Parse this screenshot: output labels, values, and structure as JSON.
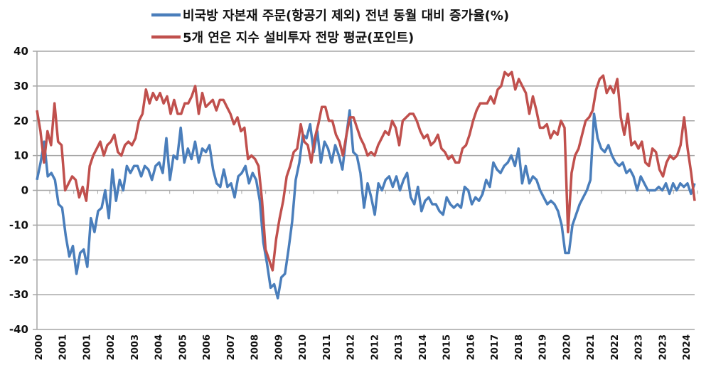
{
  "chart_data": {
    "type": "line",
    "title": "",
    "xlabel": "",
    "ylabel": "",
    "ylim": [
      -40,
      40
    ],
    "yticks": [
      40,
      30,
      20,
      10,
      0,
      -10,
      -20,
      -30,
      -40
    ],
    "x_range": [
      "2000-01",
      "2024-06"
    ],
    "x_tick_labels": [
      "2000",
      "2001",
      "2001",
      "2002",
      "2003",
      "2004",
      "2005",
      "2006",
      "2007",
      "2008",
      "2009",
      "2010",
      "2011",
      "2012",
      "2012",
      "2013",
      "2014",
      "2015",
      "2016",
      "2017",
      "2018",
      "2019",
      "2020",
      "2021",
      "2022",
      "2023",
      "2023",
      "2024"
    ],
    "grid": true,
    "legend_position": "top",
    "series": [
      {
        "name": "비국방 자본재 주문(항공기 제외) 전년 동월 대비 증가율(%)",
        "color": "#4a7ebb",
        "values": [
          3,
          8,
          14,
          4,
          5,
          3,
          -4,
          -5,
          -13,
          -19,
          -16,
          -24,
          -18,
          -17,
          -22,
          -8,
          -12,
          -6,
          -5,
          0,
          -8,
          6,
          -3,
          3,
          0,
          7,
          5,
          7,
          7,
          4,
          7,
          6,
          3,
          7,
          8,
          5,
          15,
          3,
          10,
          9,
          18,
          8,
          12,
          9,
          14,
          8,
          12,
          11,
          13,
          6,
          2,
          1,
          6,
          1,
          2,
          -2,
          4,
          5,
          7,
          2,
          5,
          3,
          -3,
          -15,
          -21,
          -28,
          -27,
          -31,
          -25,
          -24,
          -17,
          -9,
          3,
          8,
          16,
          15,
          19,
          11,
          17,
          8,
          14,
          12,
          8,
          13,
          10,
          6,
          15,
          23,
          11,
          10,
          5,
          -5,
          2,
          -2,
          -7,
          2,
          0,
          3,
          4,
          1,
          4,
          0,
          3,
          5,
          -2,
          -4,
          1,
          -6,
          -3,
          -2,
          -4,
          -4,
          -6,
          -7,
          -2,
          -4,
          -5,
          -4,
          -5,
          1,
          0,
          -4,
          -2,
          -3,
          -1,
          3,
          1,
          8,
          6,
          5,
          7,
          8,
          10,
          7,
          12,
          2,
          7,
          2,
          4,
          3,
          0,
          -2,
          -4,
          -3,
          -4,
          -6,
          -10,
          -18,
          -18,
          -10,
          -7,
          -4,
          -2,
          0,
          3,
          22,
          15,
          12,
          11,
          13,
          10,
          8,
          7,
          8,
          5,
          6,
          4,
          0,
          4,
          2,
          0,
          0,
          0,
          1,
          0,
          2,
          -1,
          2,
          0,
          2,
          1,
          2,
          -1,
          2
        ]
      },
      {
        "name": "5개 연은 지수 설비투자 전망 평균(포인트)",
        "color": "#c0504d",
        "values": [
          23,
          17,
          8,
          17,
          13,
          25,
          14,
          13,
          0,
          2,
          4,
          3,
          -2,
          1,
          -3,
          7,
          10,
          12,
          14,
          10,
          13,
          14,
          16,
          11,
          10,
          13,
          14,
          13,
          15,
          20,
          22,
          29,
          25,
          28,
          26,
          28,
          25,
          27,
          22,
          26,
          22,
          22,
          25,
          25,
          27,
          30,
          22,
          28,
          24,
          25,
          26,
          23,
          26,
          26,
          24,
          22,
          19,
          21,
          17,
          18,
          9,
          10,
          9,
          7,
          -3,
          -17,
          -20,
          -23,
          -14,
          -8,
          -3,
          4,
          7,
          11,
          12,
          19,
          14,
          13,
          8,
          15,
          19,
          24,
          24,
          20,
          20,
          16,
          14,
          10,
          16,
          21,
          21,
          18,
          15,
          13,
          10,
          11,
          10,
          13,
          15,
          17,
          16,
          20,
          18,
          13,
          20,
          21,
          22,
          22,
          20,
          17,
          15,
          16,
          13,
          14,
          16,
          12,
          11,
          9,
          10,
          8,
          8,
          12,
          13,
          16,
          20,
          23,
          25,
          25,
          25,
          27,
          25,
          29,
          30,
          34,
          33,
          34,
          29,
          32,
          30,
          28,
          22,
          27,
          23,
          18,
          18,
          19,
          15,
          17,
          16,
          20,
          18,
          -12,
          5,
          10,
          12,
          16,
          20,
          21,
          23,
          29,
          32,
          33,
          28,
          30,
          28,
          32,
          21,
          16,
          22,
          13,
          14,
          12,
          14,
          8,
          7,
          12,
          11,
          6,
          4,
          8,
          10,
          9,
          10,
          13,
          21,
          12,
          5,
          -3
        ]
      }
    ]
  }
}
